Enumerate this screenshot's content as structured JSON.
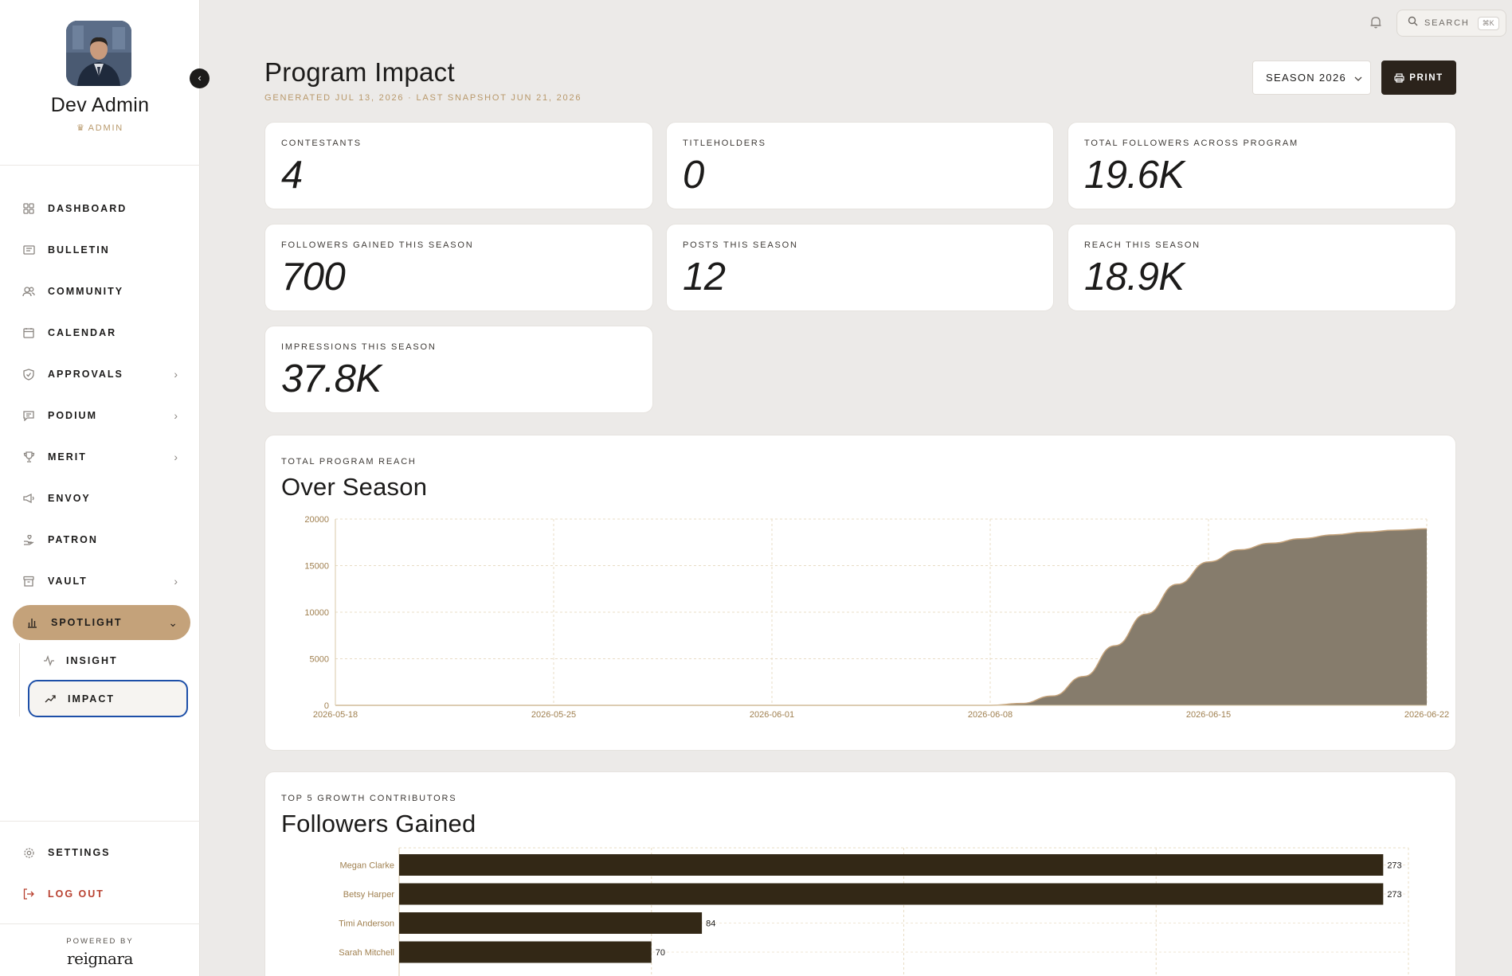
{
  "user": {
    "name": "Dev Admin",
    "role": "ADMIN"
  },
  "nav": {
    "items": [
      {
        "label": "DASHBOARD",
        "icon": "grid-icon"
      },
      {
        "label": "BULLETIN",
        "icon": "newspaper-icon"
      },
      {
        "label": "COMMUNITY",
        "icon": "users-icon"
      },
      {
        "label": "CALENDAR",
        "icon": "calendar-icon"
      },
      {
        "label": "APPROVALS",
        "icon": "shield-check-icon"
      },
      {
        "label": "PODIUM",
        "icon": "message-square-icon"
      },
      {
        "label": "MERIT",
        "icon": "trophy-icon"
      },
      {
        "label": "ENVOY",
        "icon": "megaphone-icon"
      },
      {
        "label": "PATRON",
        "icon": "hand-heart-icon"
      },
      {
        "label": "VAULT",
        "icon": "archive-icon"
      },
      {
        "label": "SPOTLIGHT",
        "icon": "bar-chart-icon"
      }
    ],
    "sub_items": [
      {
        "label": "INSIGHT",
        "icon": "activity-icon"
      },
      {
        "label": "IMPACT",
        "icon": "trending-up-icon"
      }
    ],
    "settings": "SETTINGS",
    "logout": "LOG OUT"
  },
  "footer": {
    "powered_by": "POWERED BY",
    "brand": "reignara"
  },
  "topbar": {
    "search_label": "SEARCH",
    "search_shortcut": "⌘K"
  },
  "header": {
    "title": "Program Impact",
    "subtitle": "GENERATED JUL 13, 2026 · LAST SNAPSHOT JUN 21, 2026",
    "season": "SEASON 2026",
    "print_label": "PRINT"
  },
  "stats": [
    {
      "label": "CONTESTANTS",
      "value": "4"
    },
    {
      "label": "TITLEHOLDERS",
      "value": "0"
    },
    {
      "label": "TOTAL FOLLOWERS ACROSS PROGRAM",
      "value": "19.6K"
    },
    {
      "label": "FOLLOWERS GAINED THIS SEASON",
      "value": "700"
    },
    {
      "label": "POSTS THIS SEASON",
      "value": "12"
    },
    {
      "label": "REACH THIS SEASON",
      "value": "18.9K"
    },
    {
      "label": "IMPRESSIONS THIS SEASON",
      "value": "37.8K"
    }
  ],
  "colors": {
    "accent": "#c4a27a",
    "area_fill": "#867c6c",
    "bar_fill": "#332816",
    "tick_color": "#a08050"
  },
  "chart_data": [
    {
      "type": "area",
      "kicker": "TOTAL PROGRAM REACH",
      "title": "Over Season",
      "x_ticks": [
        "2026-05-18",
        "2026-05-25",
        "2026-06-01",
        "2026-06-08",
        "2026-06-15",
        "2026-06-22"
      ],
      "y_ticks": [
        0,
        5000,
        10000,
        15000,
        20000
      ],
      "ylim": [
        0,
        20000
      ],
      "grid": true,
      "x": [
        "2026-05-18",
        "2026-06-08",
        "2026-06-09",
        "2026-06-10",
        "2026-06-11",
        "2026-06-12",
        "2026-06-13",
        "2026-06-14",
        "2026-06-15",
        "2026-06-16",
        "2026-06-17",
        "2026-06-18",
        "2026-06-19",
        "2026-06-20",
        "2026-06-21",
        "2026-06-22"
      ],
      "values": [
        0,
        0,
        200,
        1000,
        3100,
        6400,
        9800,
        13000,
        15400,
        16700,
        17400,
        17900,
        18300,
        18600,
        18800,
        18950
      ]
    },
    {
      "type": "bar",
      "orientation": "horizontal",
      "kicker": "TOP 5 GROWTH CONTRIBUTORS",
      "title": "Followers Gained",
      "categories": [
        "Megan Clarke",
        "Betsy Harper",
        "Timi Anderson",
        "Sarah Mitchell"
      ],
      "values": [
        273,
        273,
        84,
        70
      ],
      "xlim": [
        0,
        280
      ],
      "grid": true
    }
  ]
}
